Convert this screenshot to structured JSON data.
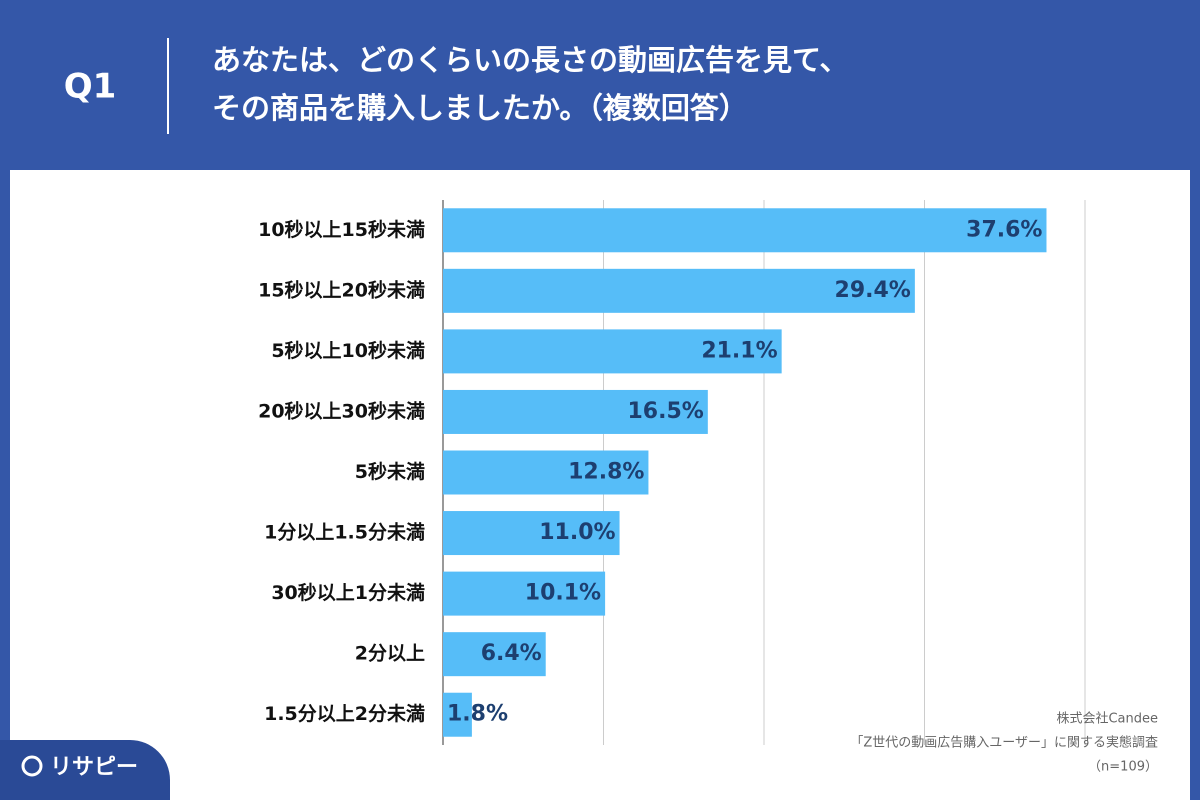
{
  "header": {
    "question": "Q1",
    "title_lines": [
      "あなたは、どのくらいの長さの動画広告を見て、",
      "その商品を購入しましたか。（複数回答）"
    ]
  },
  "chart_data": {
    "type": "bar",
    "orientation": "horizontal",
    "categories": [
      "10秒以上15秒未満",
      "15秒以上20秒未満",
      "5秒以上10秒未満",
      "20秒以上30秒未満",
      "5秒未満",
      "1分以上1.5分未満",
      "30秒以上1分未満",
      "2分以上",
      "1.5分以上2分未満"
    ],
    "values": [
      37.6,
      29.4,
      21.1,
      16.5,
      12.8,
      11.0,
      10.1,
      6.4,
      1.8
    ],
    "value_labels": [
      "37.6%",
      "29.4%",
      "21.1%",
      "16.5%",
      "12.8%",
      "11.0%",
      "10.1%",
      "6.4%",
      "1.8%"
    ],
    "color": "#56bdf8",
    "xlim": [
      0,
      40
    ],
    "xticks": [
      0,
      10,
      20,
      30,
      40
    ],
    "grid": true
  },
  "source": [
    "株式会社Candee",
    "「Z世代の動画広告購入ユーザー」に関する実態調査",
    "（n=109）"
  ],
  "logo": "リサピー"
}
